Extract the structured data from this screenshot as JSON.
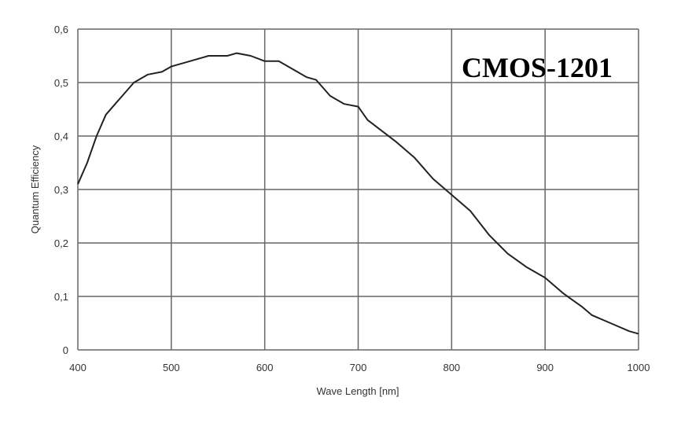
{
  "chart_data": {
    "type": "line",
    "title": "",
    "annotation": "CMOS-1201",
    "xlabel": "Wave Length [nm]",
    "ylabel": "Quantum Efficiency",
    "xlim": [
      400,
      1000
    ],
    "ylim": [
      0,
      0.6
    ],
    "grid": true,
    "x_ticks": [
      400,
      500,
      600,
      700,
      800,
      900,
      1000
    ],
    "x_tick_labels": [
      "400",
      "500",
      "600",
      "700",
      "800",
      "900",
      "1000"
    ],
    "y_ticks": [
      0,
      0.1,
      0.2,
      0.3,
      0.4,
      0.5,
      0.6
    ],
    "y_tick_labels": [
      "0",
      "0,1",
      "0,2",
      "0,3",
      "0,4",
      "0,5",
      "0,6"
    ],
    "line_color": "#222222",
    "series": [
      {
        "x": [
          400,
          410,
          420,
          430,
          440,
          450,
          460,
          475,
          490,
          500,
          520,
          540,
          560,
          570,
          585,
          600,
          615,
          630,
          645,
          655,
          670,
          685,
          700,
          710,
          725,
          740,
          760,
          780,
          800,
          820,
          840,
          860,
          880,
          900,
          920,
          940,
          950,
          970,
          990,
          1000
        ],
        "y": [
          0.31,
          0.35,
          0.4,
          0.44,
          0.46,
          0.48,
          0.5,
          0.515,
          0.52,
          0.53,
          0.54,
          0.55,
          0.55,
          0.555,
          0.55,
          0.54,
          0.54,
          0.525,
          0.51,
          0.505,
          0.475,
          0.46,
          0.455,
          0.43,
          0.41,
          0.39,
          0.36,
          0.32,
          0.29,
          0.26,
          0.215,
          0.18,
          0.155,
          0.135,
          0.105,
          0.08,
          0.065,
          0.05,
          0.035,
          0.03
        ]
      }
    ]
  }
}
